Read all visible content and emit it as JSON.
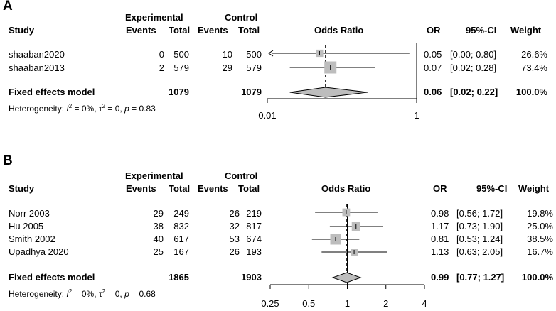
{
  "chart_data": [
    {
      "type": "forest",
      "panel": "A",
      "headers": {
        "study": "Study",
        "experimental": "Experimental",
        "control": "Control",
        "events": "Events",
        "total": "Total",
        "odds_ratio": "Odds Ratio",
        "or": "OR",
        "ci": "95%-CI",
        "weight": "Weight"
      },
      "studies": [
        {
          "name": "shaaban2020",
          "exp_events": "0",
          "exp_total": "500",
          "ctrl_events": "10",
          "ctrl_total": "500",
          "or": 0.05,
          "lo": 0.0,
          "hi": 0.8,
          "weight_pct": 26.6,
          "or_text": "0.05",
          "ci_text": "[0.00; 0.80]",
          "weight_text": "26.6%",
          "arrow_left": true
        },
        {
          "name": "shaaban2013",
          "exp_events": "2",
          "exp_total": "579",
          "ctrl_events": "29",
          "ctrl_total": "579",
          "or": 0.07,
          "lo": 0.02,
          "hi": 0.28,
          "weight_pct": 73.4,
          "or_text": "0.07",
          "ci_text": "[0.02; 0.28]",
          "weight_text": "73.4%",
          "arrow_left": false
        }
      ],
      "pooled": {
        "label": "Fixed effects model",
        "exp_total": "1079",
        "ctrl_total": "1079",
        "or": 0.06,
        "lo": 0.02,
        "hi": 0.22,
        "or_text": "0.06",
        "ci_text": "[0.02; 0.22]",
        "weight_text": "100.0%"
      },
      "heterogeneity": {
        "prefix": "Heterogeneity: ",
        "i2_symbol": "I",
        "i2_text": " = 0%, ",
        "tau2_symbol": "τ",
        "tau2_text": " = 0, ",
        "p_symbol": "p",
        "p_text": " = 0.83"
      },
      "x_scale": "log",
      "xlim": [
        0.01,
        1
      ],
      "ticks": [
        0.01,
        1
      ],
      "tick_labels": [
        "0.01",
        "1"
      ]
    },
    {
      "type": "forest",
      "panel": "B",
      "headers": {
        "study": "Study",
        "experimental": "Experimental",
        "control": "Control",
        "events": "Events",
        "total": "Total",
        "odds_ratio": "Odds Ratio",
        "or": "OR",
        "ci": "95%-CI",
        "weight": "Weight"
      },
      "studies": [
        {
          "name": "Norr 2003",
          "exp_events": "29",
          "exp_total": "249",
          "ctrl_events": "26",
          "ctrl_total": "219",
          "or": 0.98,
          "lo": 0.56,
          "hi": 1.72,
          "weight_pct": 19.8,
          "or_text": "0.98",
          "ci_text": "[0.56; 1.72]",
          "weight_text": "19.8%"
        },
        {
          "name": "Hu 2005",
          "exp_events": "38",
          "exp_total": "832",
          "ctrl_events": "32",
          "ctrl_total": "817",
          "or": 1.17,
          "lo": 0.73,
          "hi": 1.9,
          "weight_pct": 25.0,
          "or_text": "1.17",
          "ci_text": "[0.73; 1.90]",
          "weight_text": "25.0%"
        },
        {
          "name": "Smith 2002",
          "exp_events": "40",
          "exp_total": "617",
          "ctrl_events": "53",
          "ctrl_total": "674",
          "or": 0.81,
          "lo": 0.53,
          "hi": 1.24,
          "weight_pct": 38.5,
          "or_text": "0.81",
          "ci_text": "[0.53; 1.24]",
          "weight_text": "38.5%"
        },
        {
          "name": "Upadhya 2020",
          "exp_events": "25",
          "exp_total": "167",
          "ctrl_events": "26",
          "ctrl_total": "193",
          "or": 1.13,
          "lo": 0.63,
          "hi": 2.05,
          "weight_pct": 16.7,
          "or_text": "1.13",
          "ci_text": "[0.63; 2.05]",
          "weight_text": "16.7%"
        }
      ],
      "pooled": {
        "label": "Fixed effects model",
        "exp_total": "1865",
        "ctrl_total": "1903",
        "or": 0.99,
        "lo": 0.77,
        "hi": 1.27,
        "or_text": "0.99",
        "ci_text": "[0.77; 1.27]",
        "weight_text": "100.0%"
      },
      "heterogeneity": {
        "prefix": "Heterogeneity: ",
        "i2_symbol": "I",
        "i2_text": " = 0%, ",
        "tau2_symbol": "τ",
        "tau2_text": " = 0, ",
        "p_symbol": "p",
        "p_text": " = 0.68"
      },
      "x_scale": "log",
      "xlim": [
        0.25,
        4
      ],
      "ticks": [
        0.25,
        0.5,
        1,
        2,
        4
      ],
      "tick_labels": [
        "0.25",
        "0.5",
        "1",
        "2",
        "4"
      ]
    }
  ],
  "colors": {
    "box": "#bdbdbd",
    "diamond": "#bdbdbd",
    "line": "#000000"
  }
}
